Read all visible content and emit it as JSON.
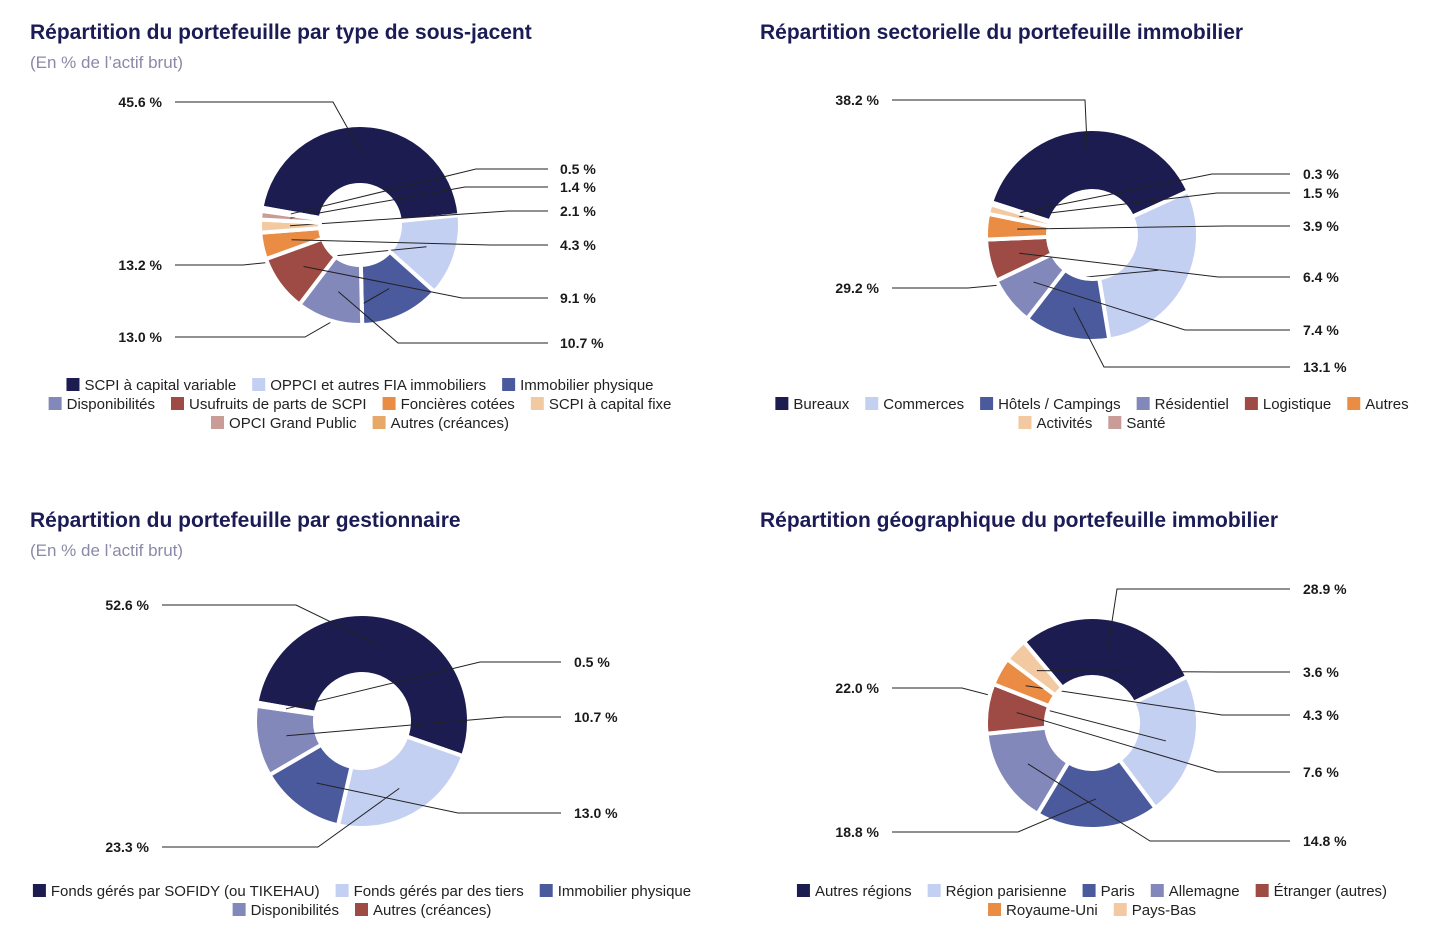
{
  "chart_data": [
    {
      "type": "pie",
      "title": "Répartition du portefeuille par type de sous-jacent",
      "subtitle": "(En % de l’actif brut)",
      "series": [
        {
          "name": "SCPI à capital variable",
          "value": 45.6,
          "label": "45.6 %",
          "color": "#1c1c50"
        },
        {
          "name": "OPPCI et autres FIA immobiliers",
          "value": 13.2,
          "label": "13.2 %",
          "color": "#c3d0f2"
        },
        {
          "name": "Immobilier physique",
          "value": 13.0,
          "label": "13.0 %",
          "color": "#4a5a9c"
        },
        {
          "name": "Disponibilités",
          "value": 10.7,
          "label": "10.7 %",
          "color": "#8388bb"
        },
        {
          "name": "Usufruits de parts de SCPI",
          "value": 9.1,
          "label": "9.1 %",
          "color": "#9e4b45"
        },
        {
          "name": "Foncières cotées",
          "value": 4.3,
          "label": "4.3 %",
          "color": "#ea8c43"
        },
        {
          "name": "SCPI à capital fixe",
          "value": 2.1,
          "label": "2.1 %",
          "color": "#f2c9a0"
        },
        {
          "name": "OPCI Grand Public",
          "value": 1.4,
          "label": "1.4 %",
          "color": "#c99c98"
        },
        {
          "name": "Autres (créances)",
          "value": 0.5,
          "label": "0.5 %",
          "color": "#e8a867"
        }
      ],
      "legend_rows": [
        [
          0,
          1,
          2
        ],
        [
          3,
          4,
          5,
          6
        ],
        [
          7,
          8
        ]
      ]
    },
    {
      "type": "pie",
      "title": "Répartition sectorielle du portefeuille immobilier",
      "series": [
        {
          "name": "Bureaux",
          "value": 38.2,
          "label": "38.2 %",
          "color": "#1c1c50"
        },
        {
          "name": "Commerces",
          "value": 29.2,
          "label": "29.2 %",
          "color": "#c3d0f2"
        },
        {
          "name": "Hôtels / Campings",
          "value": 13.1,
          "label": "13.1 %",
          "color": "#4a5a9c"
        },
        {
          "name": "Résidentiel",
          "value": 7.4,
          "label": "7.4 %",
          "color": "#8388bb"
        },
        {
          "name": "Logistique",
          "value": 6.4,
          "label": "6.4 %",
          "color": "#9e4b45"
        },
        {
          "name": "Autres",
          "value": 3.9,
          "label": "3.9 %",
          "color": "#ea8c43"
        },
        {
          "name": "Activités",
          "value": 1.5,
          "label": "1.5 %",
          "color": "#f2c9a0"
        },
        {
          "name": "Santé",
          "value": 0.3,
          "label": "0.3 %",
          "color": "#c99c98"
        }
      ],
      "legend_rows": [
        [
          0,
          1,
          2,
          3,
          4,
          5
        ],
        [
          6,
          7
        ]
      ]
    },
    {
      "type": "pie",
      "title": "Répartition du portefeuille par gestionnaire",
      "subtitle": "(En % de l’actif brut)",
      "series": [
        {
          "name": "Fonds gérés par SOFIDY (ou TIKEHAU)",
          "value": 52.6,
          "label": "52.6 %",
          "color": "#1c1c50"
        },
        {
          "name": "Fonds gérés par des tiers",
          "value": 23.3,
          "label": "23.3 %",
          "color": "#c3d0f2"
        },
        {
          "name": "Immobilier physique",
          "value": 13.0,
          "label": "13.0 %",
          "color": "#4a5a9c"
        },
        {
          "name": "Disponibilités",
          "value": 10.7,
          "label": "10.7 %",
          "color": "#8388bb"
        },
        {
          "name": "Autres (créances)",
          "value": 0.5,
          "label": "0.5 %",
          "color": "#9e4b45"
        }
      ],
      "legend_rows": [
        [
          0,
          1,
          2
        ],
        [
          3,
          4
        ]
      ]
    },
    {
      "type": "pie",
      "title": "Répartition géographique du portefeuille immobilier",
      "series": [
        {
          "name": "Autres régions",
          "value": 28.9,
          "label": "28.9 %",
          "color": "#1c1c50"
        },
        {
          "name": "Région parisienne",
          "value": 22.0,
          "label": "22.0 %",
          "color": "#c3d0f2"
        },
        {
          "name": "Paris",
          "value": 18.8,
          "label": "18.8 %",
          "color": "#4a5a9c"
        },
        {
          "name": "Allemagne",
          "value": 14.8,
          "label": "14.8 %",
          "color": "#8388bb"
        },
        {
          "name": "Étranger (autres)",
          "value": 7.6,
          "label": "7.6 %",
          "color": "#9e4b45"
        },
        {
          "name": "Royaume-Uni",
          "value": 4.3,
          "label": "4.3 %",
          "color": "#ea8c43"
        },
        {
          "name": "Pays-Bas",
          "value": 3.6,
          "label": "3.6 %",
          "color": "#f2c9a0"
        }
      ],
      "legend_rows": [
        [
          0,
          1,
          2,
          3,
          4
        ],
        [
          5,
          6
        ]
      ]
    }
  ]
}
